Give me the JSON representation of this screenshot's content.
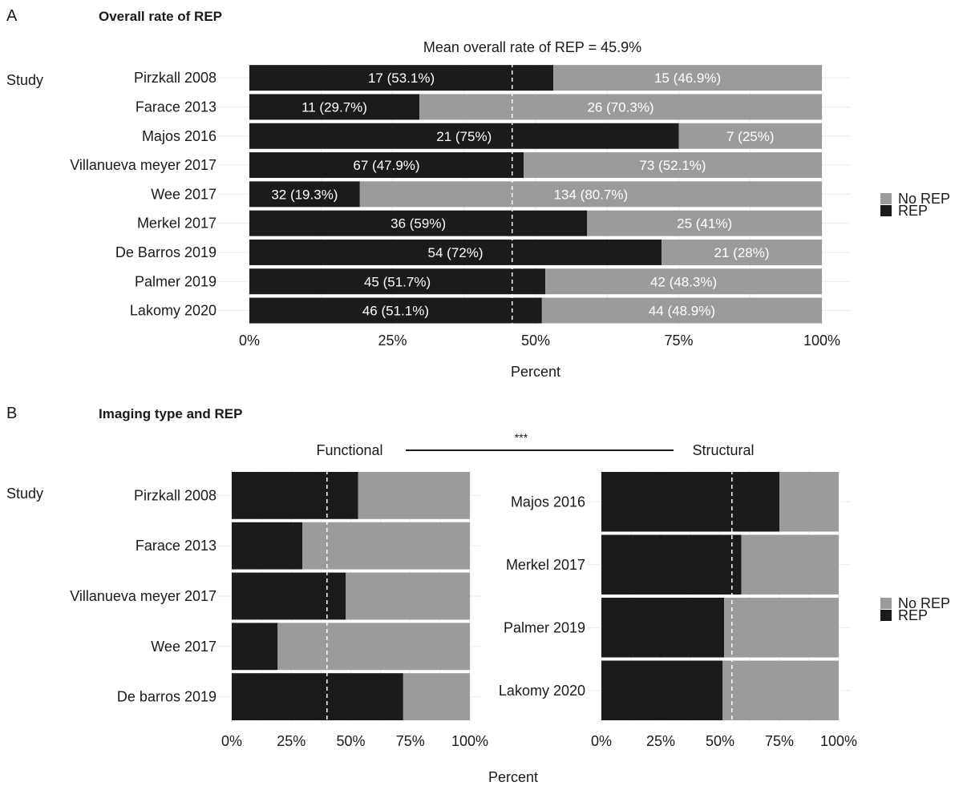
{
  "chart_data": [
    {
      "type": "bar",
      "orientation": "horizontal",
      "stacked": "percent",
      "panel_letter": "A",
      "title": "Overall rate of REP",
      "subtitle": "Mean overall rate of REP = 45.9%",
      "xlabel": "Percent",
      "ylabel": "Study",
      "xlim": [
        0,
        100
      ],
      "xticks": [
        "0%",
        "25%",
        "50%",
        "75%",
        "100%"
      ],
      "mean_line_pct": 45.9,
      "categories": [
        "Pirzkall 2008",
        "Farace 2013",
        "Majos 2016",
        "Villanueva meyer 2017",
        "Wee 2017",
        "Merkel 2017",
        "De Barros 2019",
        "Palmer 2019",
        "Lakomy 2020"
      ],
      "series": [
        {
          "name": "REP",
          "color": "#1b1b1b",
          "counts": [
            17,
            11,
            21,
            67,
            32,
            36,
            54,
            45,
            46
          ],
          "percent": [
            53.1,
            29.7,
            75,
            47.9,
            19.3,
            59,
            72,
            51.7,
            51.1
          ],
          "labels": [
            "17 (53.1%)",
            "11 (29.7%)",
            "21 (75%)",
            "67 (47.9%)",
            "32 (19.3%)",
            "36 (59%)",
            "54 (72%)",
            "45 (51.7%)",
            "46 (51.1%)"
          ]
        },
        {
          "name": "No REP",
          "color": "#9b9b9b",
          "counts": [
            15,
            26,
            7,
            73,
            134,
            25,
            21,
            42,
            44
          ],
          "percent": [
            46.9,
            70.3,
            25,
            52.1,
            80.7,
            41,
            28,
            48.3,
            48.9
          ],
          "labels": [
            "15 (46.9%)",
            "26 (70.3%)",
            "7 (25%)",
            "73 (52.1%)",
            "134 (80.7%)",
            "25 (41%)",
            "21 (28%)",
            "42 (48.3%)",
            "44 (48.9%)"
          ]
        }
      ],
      "legend": {
        "placement": "right",
        "entries": [
          "No REP",
          "REP"
        ]
      },
      "grid": true
    },
    {
      "type": "bar",
      "orientation": "horizontal",
      "stacked": "percent",
      "panel_letter": "B",
      "title": "Imaging type and REP",
      "xlabel": "Percent",
      "ylabel": "Study",
      "significance": "***",
      "facets": [
        {
          "name": "Functional",
          "categories": [
            "Pirzkall 2008",
            "Farace 2013",
            "Villanueva meyer 2017",
            "Wee 2017",
            "De barros 2019"
          ],
          "rep_percent": [
            53.1,
            29.7,
            47.9,
            19.3,
            72
          ],
          "no_rep_percent": [
            46.9,
            70.3,
            52.1,
            80.7,
            28
          ],
          "mean_line_pct": 40,
          "xticks": [
            "0%",
            "25%",
            "50%",
            "75%",
            "100%"
          ]
        },
        {
          "name": "Structural",
          "categories": [
            "Majos 2016",
            "Merkel 2017",
            "Palmer 2019",
            "Lakomy 2020"
          ],
          "rep_percent": [
            75,
            59,
            51.7,
            51.1
          ],
          "no_rep_percent": [
            25,
            41,
            48.3,
            48.9
          ],
          "mean_line_pct": 55,
          "xticks": [
            "0%",
            "25%",
            "50%",
            "75%",
            "100%"
          ]
        }
      ],
      "legend": {
        "placement": "right",
        "entries": [
          "No REP",
          "REP"
        ]
      },
      "grid": true
    }
  ],
  "colors": {
    "rep": "#1b1b1b",
    "no_rep": "#9b9b9b",
    "grid": "#ebebeb",
    "text": "#1a1a1a"
  }
}
